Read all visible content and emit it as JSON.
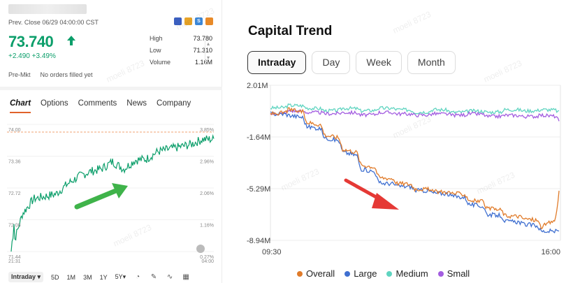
{
  "quote": {
    "prev_close": "Prev. Close 06/29 04:00:00 CST",
    "price": "73.740",
    "change": "+2.490 +3.49%",
    "stats": [
      {
        "label": "High",
        "value": "73.780"
      },
      {
        "label": "Low",
        "value": "71.310"
      },
      {
        "label": "Volume",
        "value": "1.16M"
      }
    ],
    "premkt_label": "Pre-Mkt",
    "premkt_value": "No orders filled yet",
    "flag_letters": [
      "",
      "",
      "S",
      ""
    ]
  },
  "tabs": [
    "Chart",
    "Options",
    "Comments",
    "News",
    "Company"
  ],
  "mini_chart": {
    "y_labels": [
      "74.00",
      "73.36",
      "72.72",
      "72.08",
      "71.44"
    ],
    "pct_labels": [
      "3.85%",
      "2.96%",
      "2.06%",
      "1.16%",
      "0.27%"
    ],
    "time_start": "21:31",
    "time_end": "04:00",
    "line_color": "#0b9e6a"
  },
  "toolbar": [
    "Intraday ▾",
    "5D",
    "1M",
    "3M",
    "1Y",
    "5Y▾"
  ],
  "watermark": "moeli 8723",
  "capital": {
    "title": "Capital Trend",
    "periods": [
      "Intraday",
      "Day",
      "Week",
      "Month"
    ],
    "y_labels": [
      "2.01M",
      "-1.64M",
      "-5.29M",
      "-8.94M"
    ],
    "x_start": "09:30",
    "x_end": "16:00",
    "legend": [
      {
        "name": "Overall",
        "color": "#e07b2a"
      },
      {
        "name": "Large",
        "color": "#3f6fd0"
      },
      {
        "name": "Medium",
        "color": "#5fd4c0"
      },
      {
        "name": "Small",
        "color": "#a35de0"
      }
    ]
  },
  "chart_data": [
    {
      "type": "line",
      "title": "",
      "y_range": [
        71.44,
        74.0
      ],
      "x_range": [
        "21:31",
        "04:00"
      ],
      "series": [
        {
          "values": [
            71.44,
            72.2,
            72.5,
            72.55,
            72.6,
            72.8,
            72.95,
            73.05,
            73.1,
            73.25,
            73.1,
            73.28,
            73.3,
            73.45,
            73.5,
            73.55,
            73.6,
            73.7,
            73.7
          ]
        }
      ]
    },
    {
      "type": "line",
      "title": "Capital Trend",
      "y_range": [
        -8.94,
        2.01
      ],
      "y_unit": "M",
      "x_range": [
        "09:30",
        "16:00"
      ],
      "series": [
        {
          "name": "Overall",
          "values": [
            0.0,
            0.3,
            -0.6,
            -1.5,
            -2.5,
            -3.6,
            -4.5,
            -4.9,
            -5.3,
            -5.5,
            -5.6,
            -6.1,
            -6.7,
            -7.2,
            -7.4,
            -8.0,
            -5.5
          ]
        },
        {
          "name": "Large",
          "values": [
            0.0,
            -0.1,
            -0.9,
            -1.7,
            -2.7,
            -3.9,
            -4.9,
            -5.1,
            -5.4,
            -5.6,
            -5.8,
            -6.4,
            -7.1,
            -7.6,
            -7.8,
            -8.3,
            -8.3
          ]
        },
        {
          "name": "Medium",
          "values": [
            0.4,
            0.6,
            0.4,
            0.2,
            0.4,
            0.2,
            0.4,
            0.3,
            0.1,
            0.3,
            0.1,
            0.2,
            0.1,
            0.3,
            0.2,
            0.3,
            0.1
          ]
        },
        {
          "name": "Small",
          "values": [
            0.0,
            0.2,
            0.1,
            0.0,
            0.1,
            -0.1,
            0.1,
            0.0,
            -0.1,
            0.0,
            -0.1,
            0.0,
            -0.2,
            -0.1,
            -0.2,
            -0.1,
            -0.5
          ]
        }
      ]
    }
  ]
}
